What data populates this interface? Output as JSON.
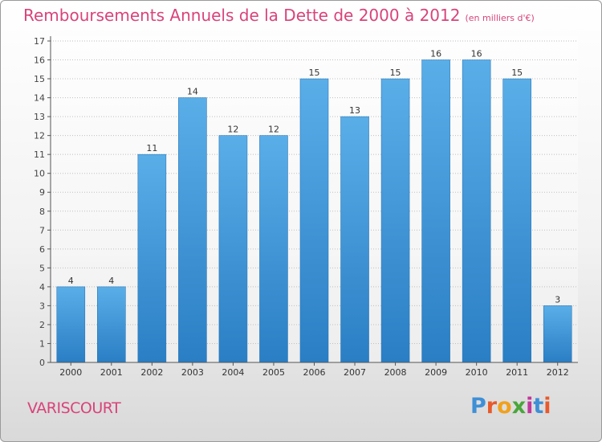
{
  "header": {
    "title": "Remboursements Annuels de la Dette de 2000 à 2012",
    "unit": "(en milliers d'€)"
  },
  "commune": "VARISCOURT",
  "logo": {
    "text": "Proxiti",
    "colors": [
      "#3f8fd6",
      "#e85a2b",
      "#f0a11d",
      "#4aa63b",
      "#c0389a",
      "#3f8fd6",
      "#e85a2b"
    ]
  },
  "chart_data": {
    "type": "bar",
    "title": "Remboursements Annuels de la Dette de 2000 à 2012",
    "categories": [
      "2000",
      "2001",
      "2002",
      "2003",
      "2004",
      "2005",
      "2006",
      "2007",
      "2008",
      "2009",
      "2010",
      "2011",
      "2012"
    ],
    "values": [
      4,
      4,
      11,
      14,
      12,
      12,
      15,
      13,
      15,
      16,
      16,
      15,
      3
    ],
    "ylim": [
      0,
      17
    ],
    "yticks": [
      0,
      1,
      2,
      3,
      4,
      5,
      6,
      7,
      8,
      9,
      10,
      11,
      12,
      13,
      14,
      15,
      16,
      17
    ],
    "grid": true,
    "bar_color": "#3c93d8",
    "title_color": "#d9437a"
  }
}
